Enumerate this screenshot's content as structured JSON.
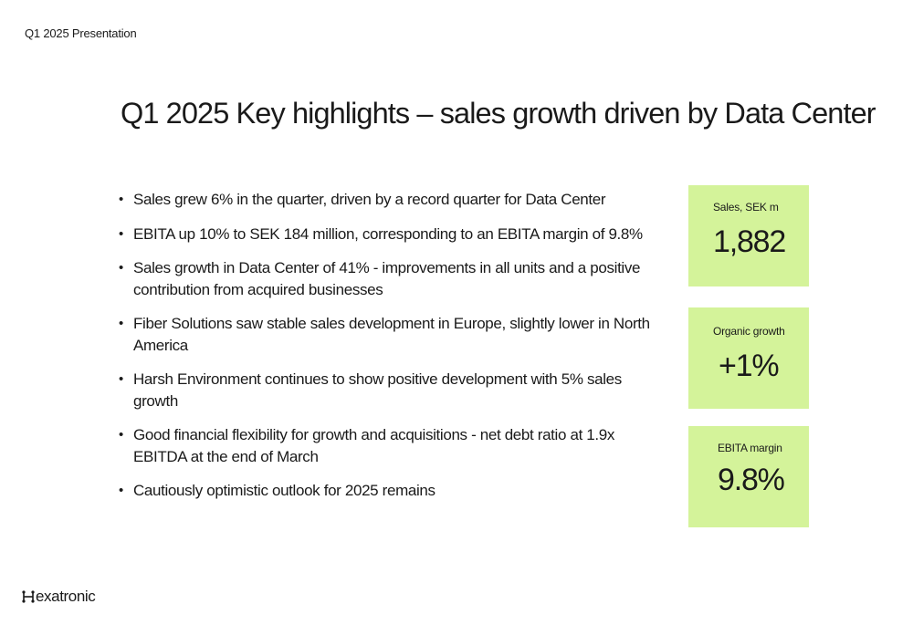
{
  "header": {
    "label": "Q1 2025 Presentation"
  },
  "slide": {
    "title": "Q1 2025 Key highlights – sales growth driven by Data Center"
  },
  "bullets": [
    "Sales grew 6% in the quarter, driven by a record quarter for Data Center",
    "EBITA up 10% to SEK 184 million, corresponding to an EBITA margin of 9.8%",
    "Sales growth in Data Center of 41% - improvements in all units and a positive contribution from acquired businesses",
    "Fiber Solutions saw stable sales development in Europe, slightly lower in North America",
    "Harsh Environment continues to show positive development with 5% sales growth",
    "Good financial flexibility for growth and acquisitions - net debt ratio at 1.9x EBITDA at the end of March",
    "Cautiously optimistic outlook for 2025 remains"
  ],
  "bullet_symbol": "•",
  "kpis": [
    {
      "label": "Sales, SEK m",
      "value": "1,882"
    },
    {
      "label": "Organic growth",
      "value": "+1%"
    },
    {
      "label": "EBITA margin",
      "value": "9.8%"
    }
  ],
  "colors": {
    "kpi_background": "#d4f39a",
    "text": "#1a1a1a"
  },
  "logo": {
    "text": "exatronic",
    "mark_icon": "hexatronic-h-icon"
  }
}
